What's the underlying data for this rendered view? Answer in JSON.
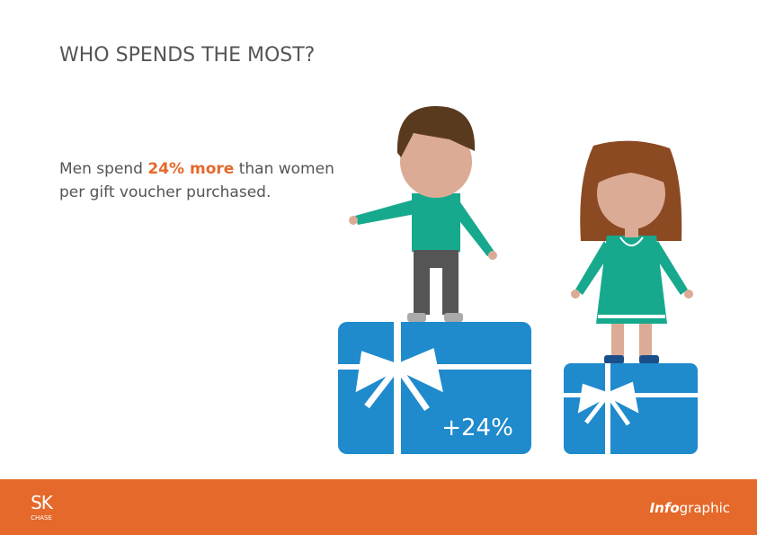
{
  "header": {
    "title": "WHO SPENDS THE MOST?"
  },
  "body": {
    "line1": {
      "before": "Men spend ",
      "highlight": "24% more",
      "after": " than women"
    },
    "line2": "per gift voucher purchased."
  },
  "card_label": "+24%",
  "footer": {
    "logo": "SK",
    "logo_sub": "CHASE",
    "tag_bold": "Info",
    "tag_rest": "graphic"
  }
}
